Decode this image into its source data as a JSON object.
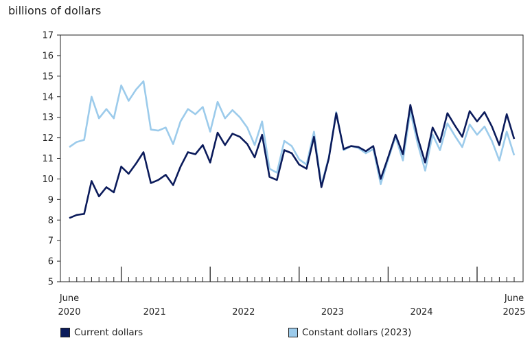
{
  "chart_data": {
    "type": "line",
    "ylabel": "billions of dollars",
    "ylim": [
      5,
      17
    ],
    "yticks": [
      5,
      6,
      7,
      8,
      9,
      10,
      11,
      12,
      13,
      14,
      15,
      16,
      17
    ],
    "x_start": "2020-06",
    "x_end": "2025-06",
    "x_labels": [
      {
        "top": "June",
        "bottom": "2020",
        "month": 0
      },
      {
        "top": "",
        "bottom": "2021",
        "month": 12
      },
      {
        "top": "",
        "bottom": "2022",
        "month": 24
      },
      {
        "top": "",
        "bottom": "2023",
        "month": 36
      },
      {
        "top": "",
        "bottom": "2024",
        "month": 48
      },
      {
        "top": "June",
        "bottom": "2025",
        "month": 60
      }
    ],
    "year_boundaries": [
      "2021-01",
      "2022-01",
      "2023-01",
      "2024-01",
      "2025-01"
    ],
    "grid": false,
    "legend_position": "bottom",
    "series": [
      {
        "name": "Current dollars",
        "color": "#0b1b5b",
        "values": [
          8.1,
          8.25,
          8.3,
          9.9,
          9.15,
          9.6,
          9.35,
          10.6,
          10.25,
          10.75,
          11.3,
          9.8,
          9.95,
          10.2,
          9.7,
          10.6,
          11.3,
          11.2,
          11.65,
          10.8,
          12.25,
          11.65,
          12.2,
          12.05,
          11.7,
          11.05,
          12.15,
          10.1,
          9.95,
          11.4,
          11.25,
          10.7,
          10.5,
          12.05,
          9.6,
          11.0,
          13.2,
          11.45,
          11.6,
          11.55,
          11.35,
          11.6,
          10.0,
          11.05,
          12.15,
          11.2,
          13.6,
          12.0,
          10.8,
          12.5,
          11.8,
          13.2,
          12.6,
          12.05,
          13.3,
          12.8,
          13.25,
          12.55,
          11.65,
          13.15,
          11.95
        ]
      },
      {
        "name": "Constant dollars (2023)",
        "color": "#9ccbeb",
        "values": [
          11.55,
          11.8,
          11.9,
          14.0,
          12.95,
          13.4,
          12.95,
          14.55,
          13.8,
          14.35,
          14.75,
          12.4,
          12.35,
          12.5,
          11.7,
          12.8,
          13.4,
          13.15,
          13.5,
          12.3,
          13.75,
          12.95,
          13.35,
          13.0,
          12.5,
          11.65,
          12.8,
          10.5,
          10.3,
          11.85,
          11.6,
          10.95,
          10.7,
          12.3,
          9.7,
          11.05,
          13.25,
          11.4,
          11.6,
          11.5,
          11.25,
          11.45,
          9.75,
          10.95,
          12.05,
          10.9,
          13.3,
          11.7,
          10.4,
          12.15,
          11.4,
          12.7,
          12.1,
          11.55,
          12.65,
          12.15,
          12.55,
          11.85,
          10.9,
          12.3,
          11.15
        ]
      }
    ]
  }
}
